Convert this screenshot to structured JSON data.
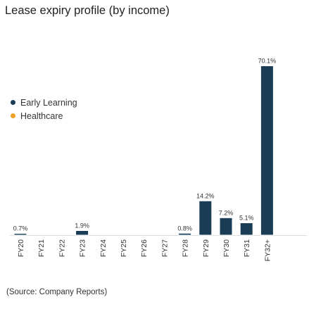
{
  "chart_data": {
    "type": "bar",
    "title": "Lease expiry profile (by income)",
    "categories": [
      "FY20",
      "FY21",
      "FY22",
      "FY23",
      "FY24",
      "FY25",
      "FY26",
      "FY27",
      "FY28",
      "FY29",
      "FY30",
      "FY31",
      "FY32+"
    ],
    "series": [
      {
        "name": "Early Learning",
        "color": "#1a3c55",
        "values": [
          0.7,
          0.0,
          0.0,
          1.9,
          0.0,
          0.0,
          0.0,
          0.0,
          0.8,
          14.2,
          7.2,
          5.1,
          70.1
        ],
        "labels": [
          "0.7%",
          "",
          "",
          "1.9%",
          "",
          "",
          "",
          "",
          "0.8%",
          "14.2%",
          "7.2%",
          "5.1%",
          "70.1%"
        ]
      },
      {
        "name": "Healthcare",
        "color": "#f0a026",
        "values": [
          0,
          0,
          0,
          0,
          0,
          0,
          0,
          0,
          0,
          0,
          0,
          0,
          0
        ]
      }
    ],
    "ylim": [
      0,
      72
    ],
    "legend_position": "middle-left"
  },
  "source_note": "(Source: Company Reports)"
}
